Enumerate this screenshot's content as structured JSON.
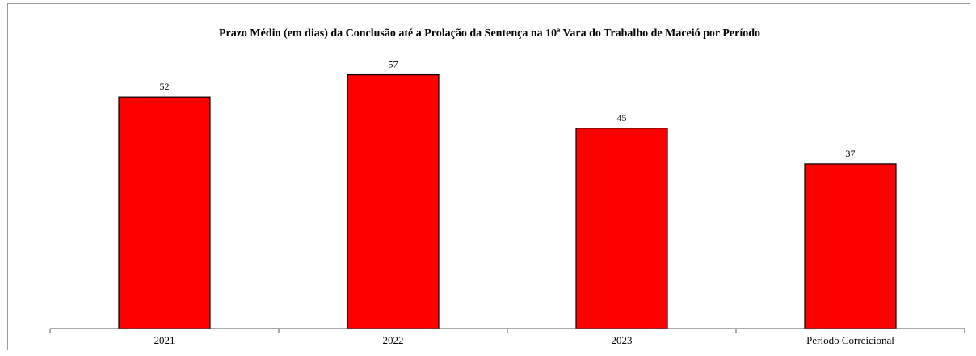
{
  "chart_data": {
    "type": "bar",
    "title": "Prazo Médio (em dias) da Conclusão até a Prolação da Sentença na 10ª Vara do Trabalho de Maceió por Período",
    "categories": [
      "2021",
      "2022",
      "2023",
      "Período Correicional"
    ],
    "values": [
      52,
      57,
      45,
      37
    ],
    "value_labels": [
      "52",
      "57",
      "45",
      "37"
    ],
    "xlabel": "",
    "ylabel": "",
    "ylim": [
      0,
      62
    ],
    "grid": false,
    "legend": "none",
    "bar_color": "#ff0000",
    "bar_edge_color": "#000000"
  }
}
